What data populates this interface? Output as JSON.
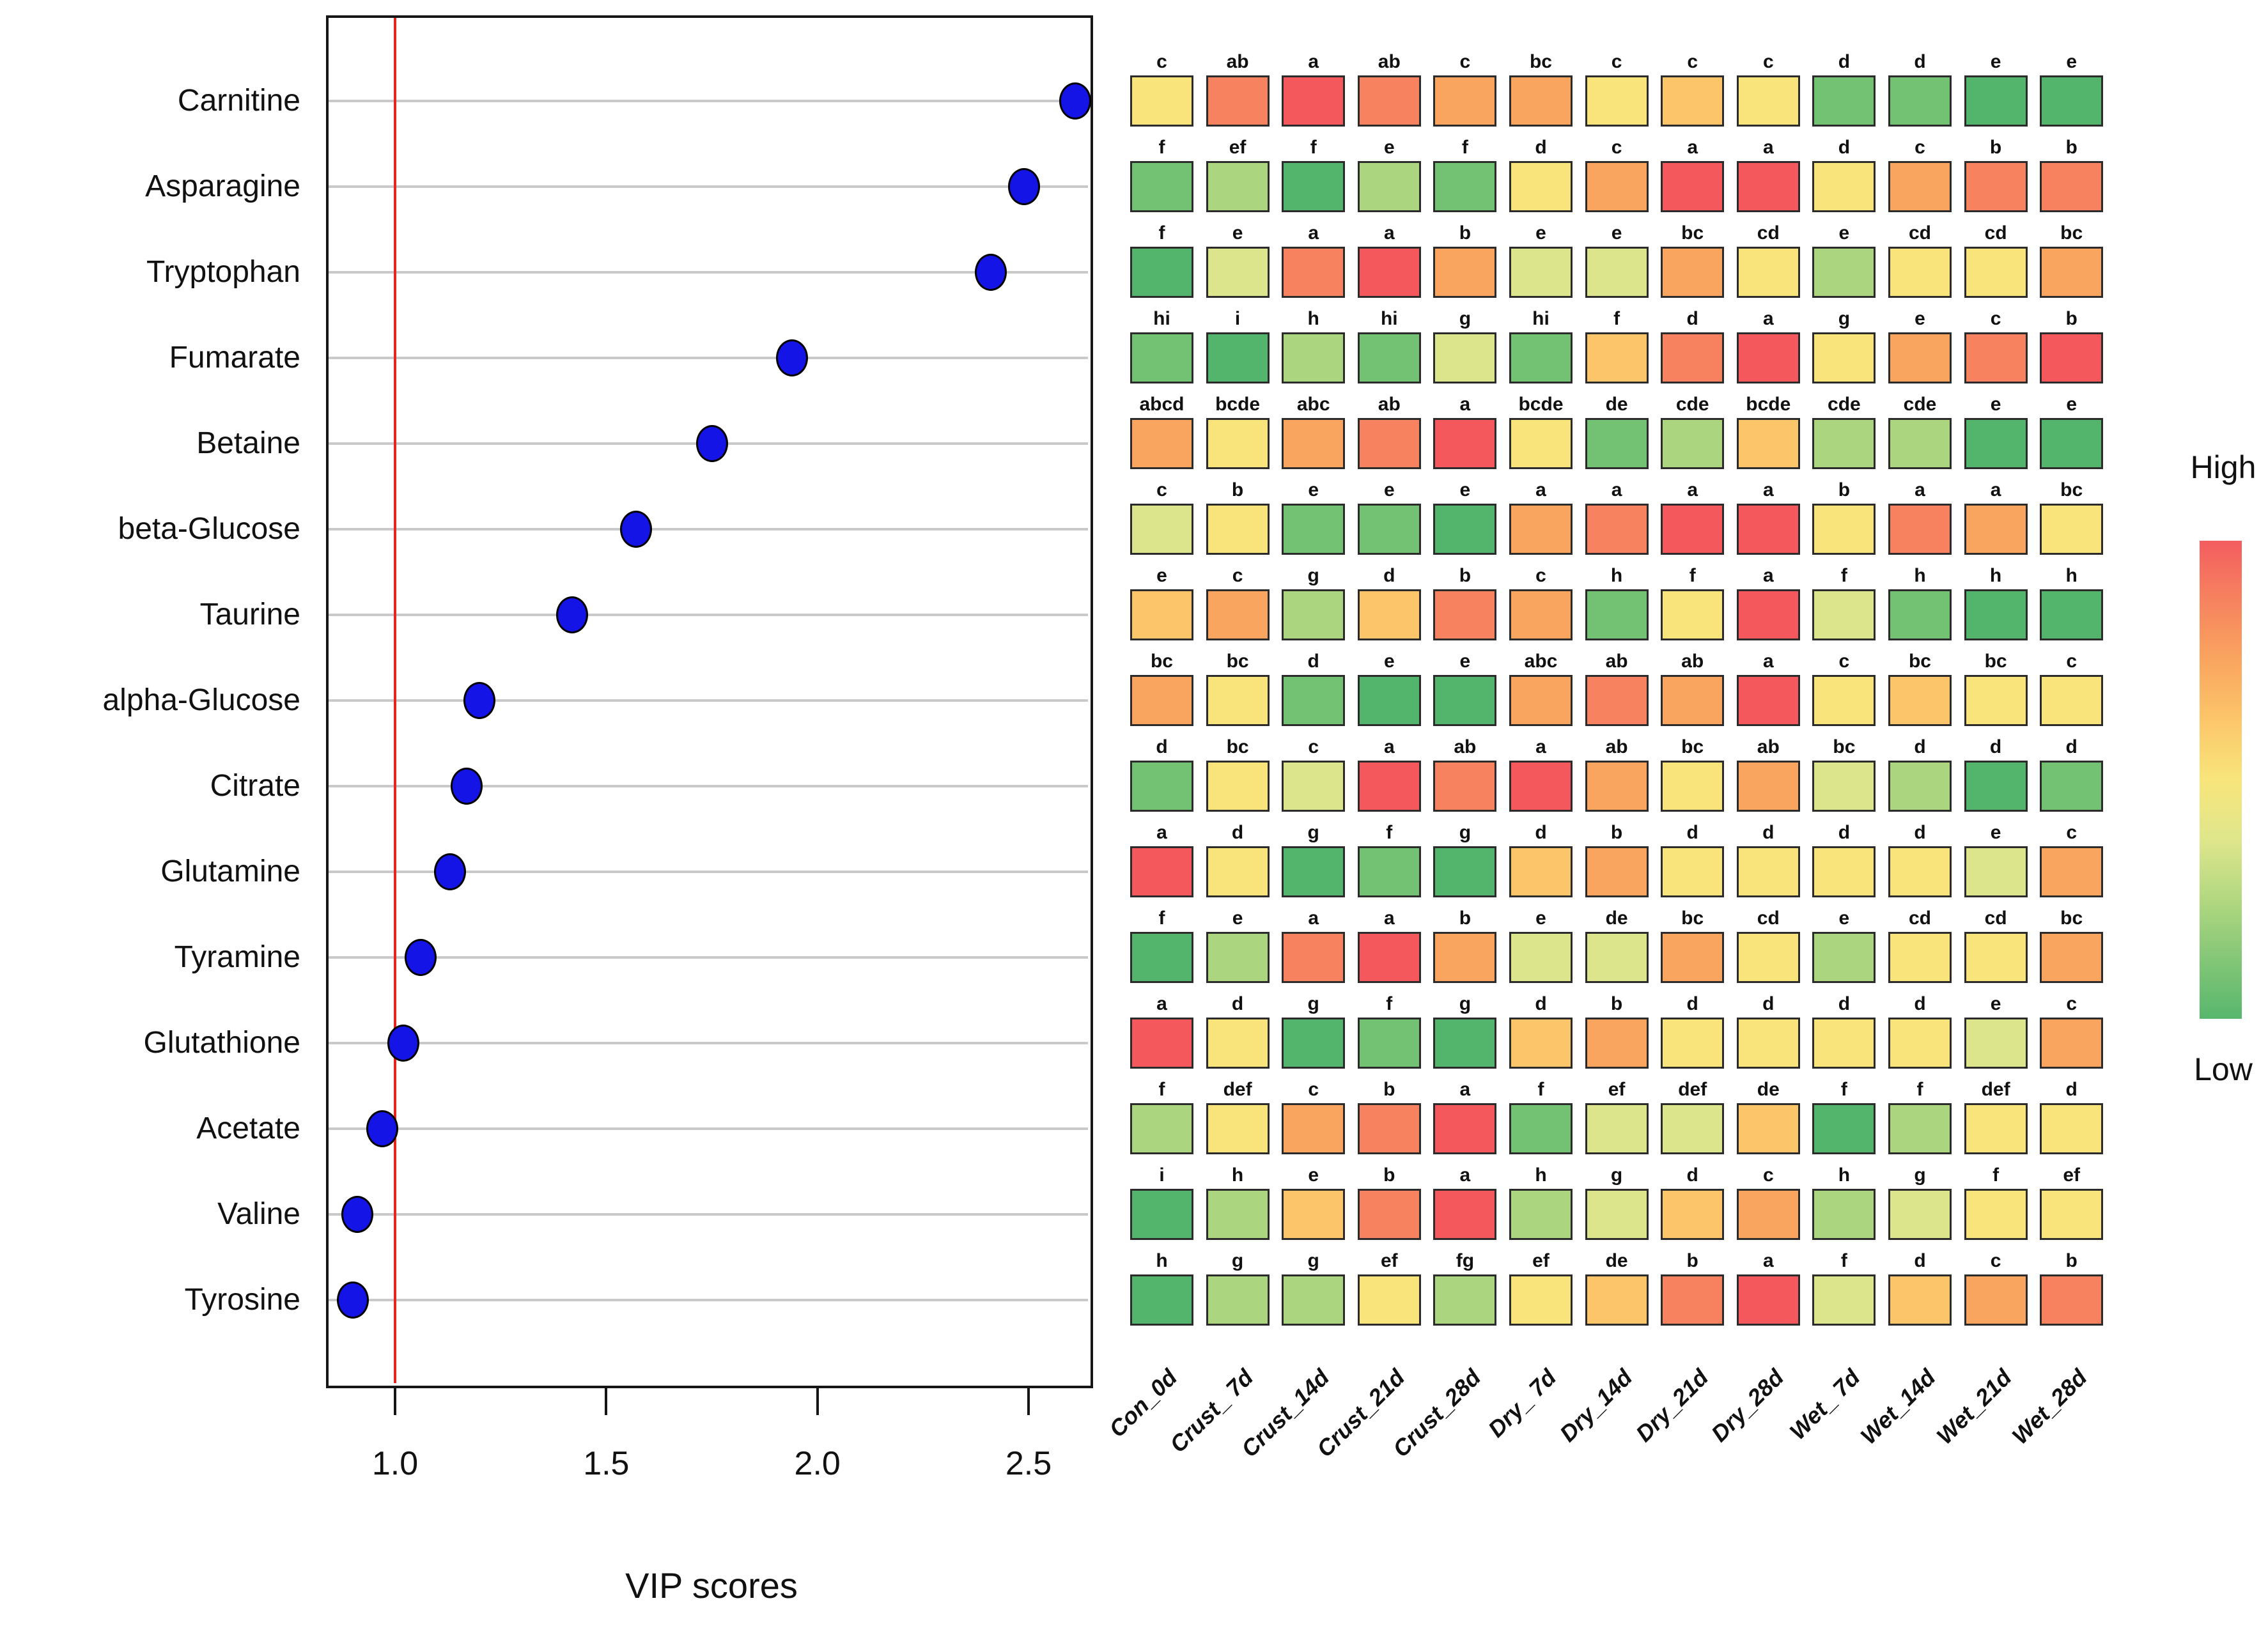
{
  "chart_data": [
    {
      "type": "scatter",
      "title": "",
      "xlabel": "VIP scores",
      "ylabel": "",
      "x_tick_labels": [
        "1.0",
        "1.5",
        "2.0",
        "2.5"
      ],
      "x_tick_values": [
        1.0,
        1.5,
        2.0,
        2.5
      ],
      "xlim": [
        0.84,
        2.64
      ],
      "grid": "horizontal",
      "reference_line_x": 1.0,
      "reference_line_color": "#e62420",
      "dot_color": "#1414e6",
      "categories": [
        "Carnitine",
        "Asparagine",
        "Tryptophan",
        "Fumarate",
        "Betaine",
        "beta-Glucose",
        "Taurine",
        "alpha-Glucose",
        "Citrate",
        "Glutamine",
        "Tyramine",
        "Glutathione",
        "Acetate",
        "Valine",
        "Tyrosine"
      ],
      "values": [
        2.61,
        2.49,
        2.41,
        1.94,
        1.75,
        1.57,
        1.42,
        1.2,
        1.17,
        1.13,
        1.06,
        1.02,
        0.97,
        0.91,
        0.9
      ]
    },
    {
      "type": "heatmap",
      "columns": [
        "Con_0d",
        "Crust_ 7d",
        "Crust_14d",
        "Crust_21d",
        "Crust_28d",
        "Dry_ 7d",
        "Dry_14d",
        "Dry_21d",
        "Dry_28d",
        "Wet_ 7d",
        "Wet_14d",
        "Wet_21d",
        "Wet_28d"
      ],
      "rows": [
        "Carnitine",
        "Asparagine",
        "Tryptophan",
        "Fumarate",
        "Betaine",
        "beta-Glucose",
        "Taurine",
        "alpha-Glucose",
        "Citrate",
        "Glutamine",
        "Tyramine",
        "Glutathione",
        "Acetate",
        "Valine",
        "Tyrosine"
      ],
      "significance_letters": [
        [
          "c",
          "ab",
          "a",
          "ab",
          "c",
          "bc",
          "c",
          "c",
          "c",
          "d",
          "d",
          "e",
          "e"
        ],
        [
          "f",
          "ef",
          "f",
          "e",
          "f",
          "d",
          "c",
          "a",
          "a",
          "d",
          "c",
          "b",
          "b"
        ],
        [
          "f",
          "e",
          "a",
          "a",
          "b",
          "e",
          "e",
          "bc",
          "cd",
          "e",
          "cd",
          "cd",
          "bc"
        ],
        [
          "hi",
          "i",
          "h",
          "hi",
          "g",
          "hi",
          "f",
          "d",
          "a",
          "g",
          "e",
          "c",
          "b"
        ],
        [
          "abcd",
          "bcde",
          "abc",
          "ab",
          "a",
          "bcde",
          "de",
          "cde",
          "bcde",
          "cde",
          "cde",
          "e",
          "e"
        ],
        [
          "c",
          "b",
          "e",
          "e",
          "e",
          "a",
          "a",
          "a",
          "a",
          "b",
          "a",
          "a",
          "bc"
        ],
        [
          "e",
          "c",
          "g",
          "d",
          "b",
          "c",
          "h",
          "f",
          "a",
          "f",
          "h",
          "h",
          "h"
        ],
        [
          "bc",
          "bc",
          "d",
          "e",
          "e",
          "abc",
          "ab",
          "ab",
          "a",
          "c",
          "bc",
          "bc",
          "c"
        ],
        [
          "d",
          "bc",
          "c",
          "a",
          "ab",
          "a",
          "ab",
          "bc",
          "ab",
          "bc",
          "d",
          "d",
          "d"
        ],
        [
          "a",
          "d",
          "g",
          "f",
          "g",
          "d",
          "b",
          "d",
          "d",
          "d",
          "d",
          "e",
          "c"
        ],
        [
          "f",
          "e",
          "a",
          "a",
          "b",
          "e",
          "de",
          "bc",
          "cd",
          "e",
          "cd",
          "cd",
          "bc"
        ],
        [
          "a",
          "d",
          "g",
          "f",
          "g",
          "d",
          "b",
          "d",
          "d",
          "d",
          "d",
          "e",
          "c"
        ],
        [
          "f",
          "def",
          "c",
          "b",
          "a",
          "f",
          "ef",
          "def",
          "de",
          "f",
          "f",
          "def",
          "d"
        ],
        [
          "i",
          "h",
          "e",
          "b",
          "a",
          "h",
          "g",
          "d",
          "c",
          "h",
          "g",
          "f",
          "ef"
        ],
        [
          "h",
          "g",
          "g",
          "ef",
          "fg",
          "ef",
          "de",
          "b",
          "a",
          "f",
          "d",
          "c",
          "b"
        ]
      ],
      "cell_colors": [
        [
          "Y",
          "S",
          "R",
          "S",
          "O",
          "O",
          "Y",
          "LO",
          "Y",
          "G",
          "G",
          "DG",
          "DG"
        ],
        [
          "G",
          "LG",
          "DG",
          "LG",
          "G",
          "Y",
          "O",
          "R",
          "R",
          "Y",
          "O",
          "S",
          "S"
        ],
        [
          "DG",
          "YG",
          "S",
          "R",
          "O",
          "YG",
          "YG",
          "O",
          "Y",
          "LG",
          "Y",
          "Y",
          "O"
        ],
        [
          "G",
          "DG",
          "LG",
          "G",
          "YG",
          "G",
          "LO",
          "S",
          "R",
          "Y",
          "O",
          "S",
          "R"
        ],
        [
          "O",
          "Y",
          "O",
          "S",
          "R",
          "Y",
          "G",
          "LG",
          "LO",
          "LG",
          "LG",
          "DG",
          "DG"
        ],
        [
          "YG",
          "Y",
          "G",
          "G",
          "DG",
          "O",
          "S",
          "R",
          "R",
          "Y",
          "S",
          "O",
          "Y"
        ],
        [
          "LO",
          "O",
          "LG",
          "LO",
          "S",
          "O",
          "G",
          "Y",
          "R",
          "YG",
          "G",
          "DG",
          "DG"
        ],
        [
          "O",
          "Y",
          "G",
          "DG",
          "DG",
          "O",
          "S",
          "O",
          "R",
          "Y",
          "LO",
          "Y",
          "Y"
        ],
        [
          "G",
          "Y",
          "YG",
          "R",
          "S",
          "R",
          "O",
          "Y",
          "O",
          "YG",
          "LG",
          "DG",
          "G"
        ],
        [
          "R",
          "Y",
          "DG",
          "G",
          "DG",
          "LO",
          "O",
          "Y",
          "Y",
          "Y",
          "Y",
          "YG",
          "O"
        ],
        [
          "DG",
          "LG",
          "S",
          "R",
          "O",
          "YG",
          "YG",
          "O",
          "Y",
          "LG",
          "Y",
          "Y",
          "O"
        ],
        [
          "R",
          "Y",
          "DG",
          "G",
          "DG",
          "LO",
          "O",
          "Y",
          "Y",
          "Y",
          "Y",
          "YG",
          "O"
        ],
        [
          "LG",
          "Y",
          "O",
          "S",
          "R",
          "G",
          "YG",
          "YG",
          "LO",
          "DG",
          "LG",
          "Y",
          "Y"
        ],
        [
          "DG",
          "LG",
          "LO",
          "S",
          "R",
          "LG",
          "YG",
          "LO",
          "O",
          "LG",
          "YG",
          "Y",
          "Y"
        ],
        [
          "DG",
          "LG",
          "LG",
          "Y",
          "LG",
          "Y",
          "LO",
          "S",
          "R",
          "YG",
          "LO",
          "O",
          "S"
        ]
      ],
      "palette": {
        "R": "#f4575c",
        "S": "#f6825f",
        "O": "#f9a45f",
        "LO": "#fcc569",
        "Y": "#f8e47a",
        "YG": "#dde58c",
        "LG": "#abd57e",
        "G": "#73c173",
        "DG": "#53b56c"
      },
      "scale_labels": {
        "high": "High",
        "low": "Low"
      },
      "legend_gradient": [
        "#f35d5f",
        "#f6835f",
        "#f9a55f",
        "#fcc66a",
        "#f8e57b",
        "#dfe68c",
        "#b2d880",
        "#84c677",
        "#57b76d"
      ]
    }
  ]
}
